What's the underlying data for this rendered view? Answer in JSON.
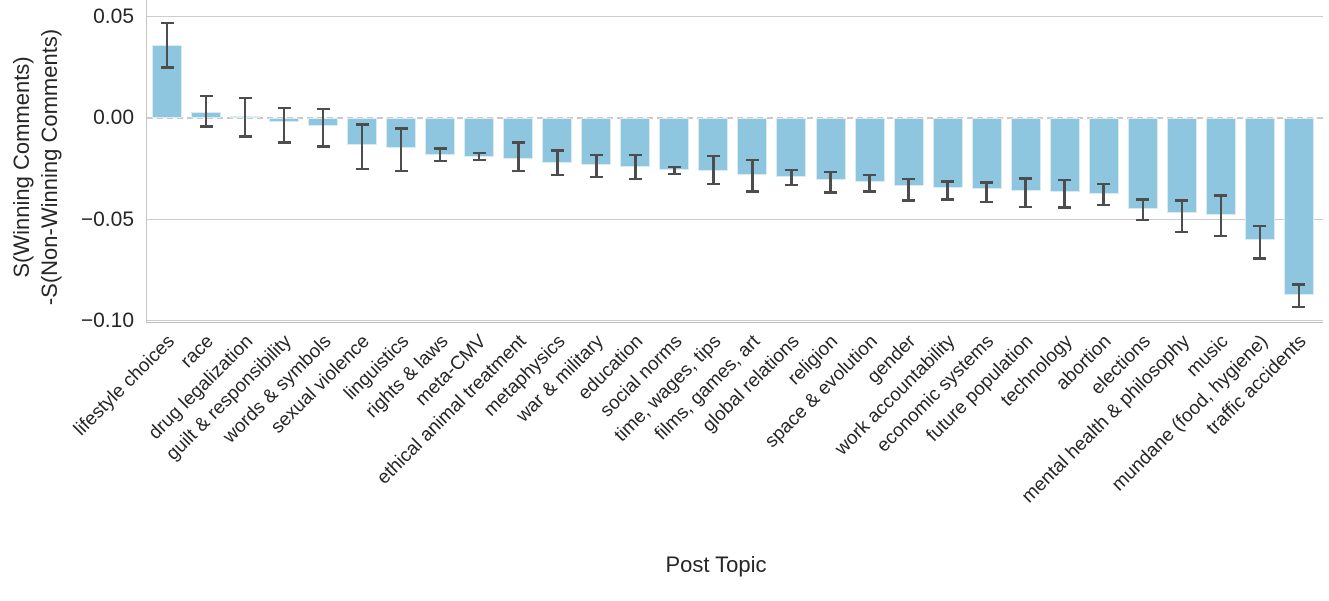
{
  "figure": {
    "ylabel_line1": "S(Winning Comments)",
    "ylabel_line2": "-S(Non-Winning Comments)",
    "xlabel": "Post Topic"
  },
  "chart_data": {
    "type": "bar",
    "title": "",
    "xlabel": "Post Topic",
    "ylabel": "S(Winning Comments) -S(Non-Winning Comments)",
    "ylim": [
      -0.105,
      0.052
    ],
    "grid": true,
    "zero_line": "dashed",
    "legend": "none",
    "bar_color": "#8dc6de",
    "bar_edge_color": "#d9ecf4",
    "error_color": "#4d4d4d",
    "grid_color": "#cccccc",
    "yticks": [
      0.05,
      0.0,
      -0.05,
      -0.1
    ],
    "ytick_labels": [
      "0.05",
      "0.00",
      "−0.05",
      "−0.10"
    ],
    "categories": [
      "lifestyle choices",
      "race",
      "drug legalization",
      "guilt & responsibility",
      "words & symbols",
      "sexual violence",
      "linguistics",
      "rights & laws",
      "meta-CMV",
      "ethical animal treatment",
      "metaphysics",
      "war & military",
      "education",
      "social norms",
      "time, wages, tips",
      "films, games, art",
      "global relations",
      "religion",
      "space & evolution",
      "gender",
      "work accountability",
      "economic systems",
      "future population",
      "technology",
      "abortion",
      "elections",
      "mental health & philosophy",
      "music",
      "mundane (food, hygiene)",
      "traffic accidents"
    ],
    "values": [
      0.036,
      0.003,
      0.001,
      -0.002,
      -0.004,
      -0.0135,
      -0.015,
      -0.018,
      -0.019,
      -0.02,
      -0.022,
      -0.023,
      -0.024,
      -0.0255,
      -0.026,
      -0.028,
      -0.029,
      -0.0305,
      -0.0315,
      -0.0335,
      -0.0345,
      -0.035,
      -0.036,
      -0.0365,
      -0.0375,
      -0.045,
      -0.047,
      -0.048,
      -0.06,
      -0.087
    ],
    "error_low": [
      0.025,
      -0.004,
      -0.009,
      -0.012,
      -0.014,
      -0.025,
      -0.026,
      -0.021,
      -0.0205,
      -0.026,
      -0.028,
      -0.029,
      -0.03,
      -0.0275,
      -0.0325,
      -0.036,
      -0.033,
      -0.0365,
      -0.036,
      -0.0405,
      -0.04,
      -0.0413,
      -0.0438,
      -0.044,
      -0.0428,
      -0.05,
      -0.056,
      -0.058,
      -0.069,
      -0.093
    ],
    "error_high": [
      0.047,
      0.011,
      0.01,
      0.005,
      0.0045,
      -0.003,
      -0.005,
      -0.015,
      -0.017,
      -0.012,
      -0.016,
      -0.018,
      -0.018,
      -0.024,
      -0.0185,
      -0.0205,
      -0.0255,
      -0.0265,
      -0.028,
      -0.03,
      -0.0312,
      -0.0317,
      -0.0297,
      -0.0305,
      -0.0325,
      -0.04,
      -0.0405,
      -0.038,
      -0.053,
      -0.082
    ]
  }
}
